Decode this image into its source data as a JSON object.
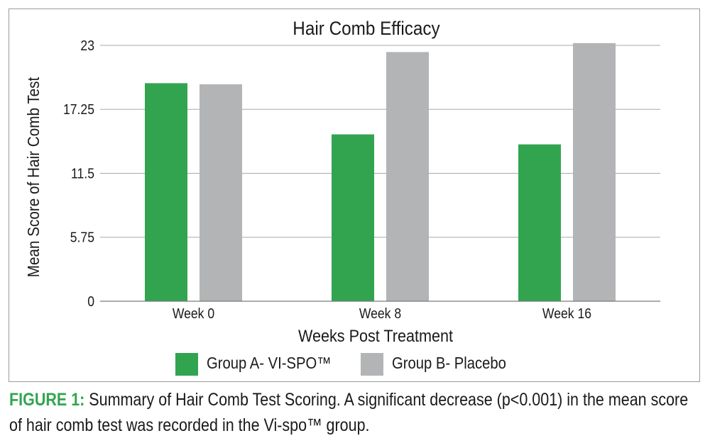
{
  "chart_data": {
    "type": "bar",
    "title": "Hair Comb Efficacy",
    "xlabel": "Weeks Post Treatment",
    "ylabel": "Mean Score of Hair Comb Test",
    "categories": [
      "Week 0",
      "Week 8",
      "Week 16"
    ],
    "series": [
      {
        "name": "Group A- VI-SPO™",
        "color": "#32a450",
        "values": [
          19.6,
          15.0,
          14.1
        ]
      },
      {
        "name": "Group B- Placebo",
        "color": "#b3b4b6",
        "values": [
          19.5,
          22.4,
          23.2
        ]
      }
    ],
    "ylim": [
      0,
      23
    ],
    "yticks": [
      "0",
      "5.75",
      "11.5",
      "17.25",
      "23"
    ],
    "ytick_values": [
      0,
      5.75,
      11.5,
      17.25,
      23
    ],
    "grid": true,
    "legend_position": "bottom-center"
  },
  "caption": {
    "label": "FIGURE 1:",
    "label_color": "#32a450",
    "text": " Summary of Hair Comb Test Scoring. A significant decrease (p<0.001) in the mean score of hair comb test was recorded in the Vi-spo™ group."
  }
}
